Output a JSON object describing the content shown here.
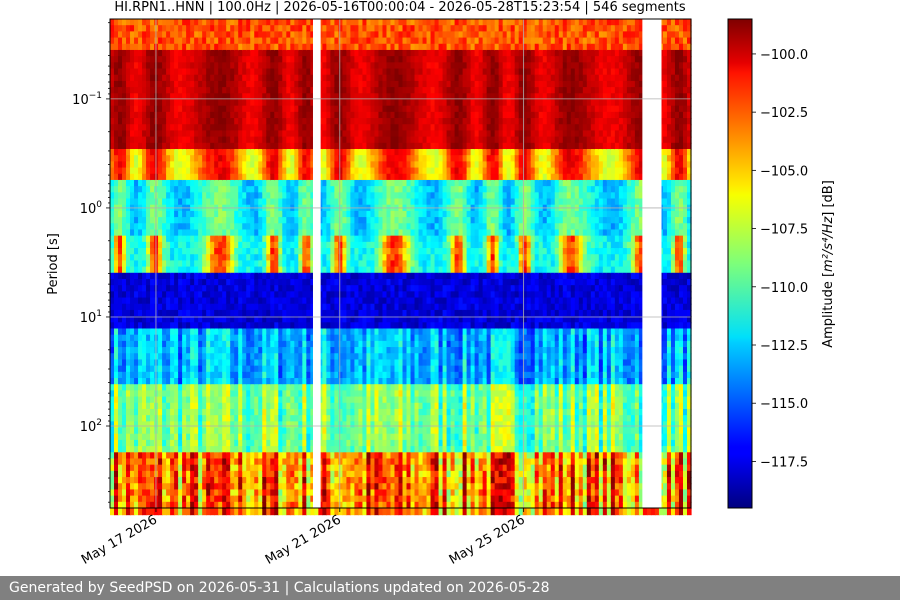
{
  "chart_data": {
    "type": "heatmap",
    "title": "HI.RPN1..HNN | 100.0Hz | 2026-05-16T00:00:04 - 2026-05-28T15:23:54 | 546 segments",
    "ylabel": "Period [s]",
    "xlabel": "",
    "yscale": "log",
    "y_inverted": true,
    "ylim": [
      0.0185,
      565
    ],
    "y_ticks": [
      {
        "value": 0.1,
        "label_base": "10",
        "label_exp": "−1"
      },
      {
        "value": 1,
        "label_base": "10",
        "label_exp": "0"
      },
      {
        "value": 10,
        "label_base": "10",
        "label_exp": "1"
      },
      {
        "value": 100,
        "label_base": "10",
        "label_exp": "2"
      }
    ],
    "xlim": [
      "2026-05-16T00:00:04",
      "2026-05-28T15:23:54"
    ],
    "x_ticks": [
      {
        "value": "2026-05-17",
        "label": "May 17 2026"
      },
      {
        "value": "2026-05-21",
        "label": "May 21 2026"
      },
      {
        "value": "2026-05-25",
        "label": "May 25 2026"
      }
    ],
    "grid": true,
    "data_gaps": [
      {
        "start": "2026-05-20T10:00:00",
        "end": "2026-05-20T14:00:00"
      },
      {
        "start": "2026-05-27T14:00:00",
        "end": "2026-05-28T00:00:00"
      }
    ],
    "colormap": "jet",
    "colorbar": {
      "label": "Amplitude [m²/s⁴/Hz] [dB]",
      "label_prefix": "Amplitude [",
      "label_math": "m²/s⁴/Hz",
      "label_suffix": "] [dB]",
      "range": [
        -119.5,
        -98.5
      ],
      "ticks": [
        -100.0,
        -102.5,
        -105.0,
        -107.5,
        -110.0,
        -112.5,
        -115.0,
        -117.5
      ],
      "tick_labels": [
        "−100.0",
        "−102.5",
        "−105.0",
        "−107.5",
        "−110.0",
        "−112.5",
        "−115.0",
        "−117.5"
      ]
    }
  },
  "footer": {
    "text": "Generated by SeedPSD on 2026-05-31 | Calculations updated on 2026-05-28"
  }
}
